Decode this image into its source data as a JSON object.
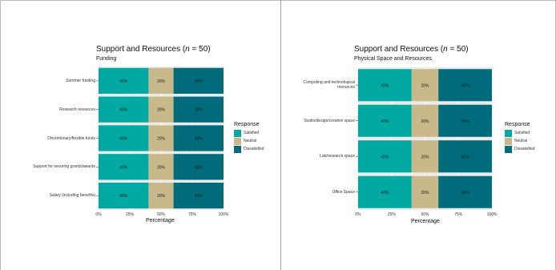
{
  "colors": {
    "Satisfied": "#00a9a1",
    "Neutral": "#c9b88a",
    "Dissatisfied": "#006b7a",
    "panel_bg": "#ebebeb"
  },
  "legend": {
    "title": "Response",
    "items": [
      "Satisfied",
      "Neutral",
      "Dissatisfied"
    ]
  },
  "chart_data": [
    {
      "type": "bar",
      "orientation": "horizontal",
      "stacked": true,
      "title": "Support and Resources (n = 50)",
      "title_parts": {
        "prefix": "Support and Resources (",
        "italic": "n",
        "suffix": " = 50)"
      },
      "subtitle": "Funding",
      "categories": [
        "Summer funding",
        "Research resources",
        "Discretionary/flexible funds",
        "Support for securing grants/awards",
        "Salary (including benefits)"
      ],
      "series": [
        {
          "name": "Satisfied",
          "values": [
            40,
            40,
            40,
            40,
            40
          ]
        },
        {
          "name": "Neutral",
          "values": [
            20,
            20,
            20,
            20,
            20
          ]
        },
        {
          "name": "Dissatisfied",
          "values": [
            40,
            40,
            40,
            40,
            40
          ]
        }
      ],
      "xlabel": "Percentage",
      "ylabel": "",
      "xlim": [
        0,
        100
      ],
      "xticks": [
        "0%",
        "25%",
        "50%",
        "75%",
        "100%"
      ],
      "data_labels": [
        "40%",
        "20%",
        "40%"
      ],
      "grid": true,
      "legend_position": "right"
    },
    {
      "type": "bar",
      "orientation": "horizontal",
      "stacked": true,
      "title": "Support and Resources (n = 50)",
      "title_parts": {
        "prefix": "Support and Resources (",
        "italic": "n",
        "suffix": " = 50)"
      },
      "subtitle": "Physical Space and Resources",
      "categories": [
        "Computing and technological resources",
        "Studio/design/creative space",
        "Lab/research space",
        "Office Space"
      ],
      "series": [
        {
          "name": "Satisfied",
          "values": [
            40,
            40,
            40,
            40
          ]
        },
        {
          "name": "Neutral",
          "values": [
            20,
            20,
            20,
            20
          ]
        },
        {
          "name": "Dissatisfied",
          "values": [
            40,
            40,
            40,
            40
          ]
        }
      ],
      "xlabel": "Percentage",
      "ylabel": "",
      "xlim": [
        0,
        100
      ],
      "xticks": [
        "0%",
        "25%",
        "50%",
        "75%",
        "100%"
      ],
      "data_labels": [
        "40%",
        "20%",
        "40%"
      ],
      "grid": true,
      "legend_position": "right"
    }
  ]
}
